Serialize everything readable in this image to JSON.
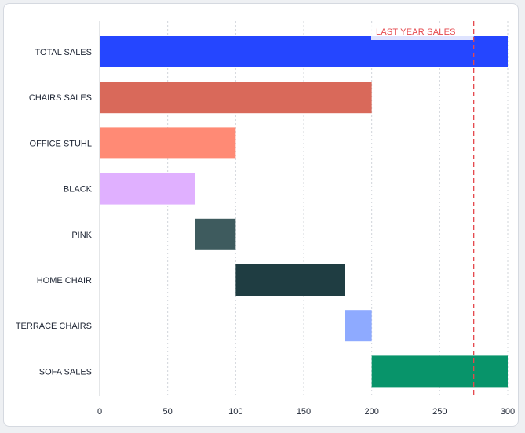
{
  "chart_data": {
    "type": "bar",
    "orientation": "horizontal",
    "subtype": "waterfall",
    "categories": [
      "TOTAL SALES",
      "CHAIRS SALES",
      "OFFICE STUHL",
      "BLACK",
      "PINK",
      "HOME CHAIR",
      "TERRACE CHAIRS",
      "SOFA SALES"
    ],
    "bars": [
      {
        "category": "TOTAL SALES",
        "start": 0,
        "end": 300,
        "color": "#2546ff"
      },
      {
        "category": "CHAIRS SALES",
        "start": 0,
        "end": 200,
        "color": "#d9695a"
      },
      {
        "category": "OFFICE STUHL",
        "start": 0,
        "end": 100,
        "color": "#ff8a75"
      },
      {
        "category": "BLACK",
        "start": 0,
        "end": 70,
        "color": "#e0b0ff"
      },
      {
        "category": "PINK",
        "start": 70,
        "end": 100,
        "color": "#3e5b5e"
      },
      {
        "category": "HOME CHAIR",
        "start": 100,
        "end": 180,
        "color": "#1f3d42"
      },
      {
        "category": "TERRACE CHAIRS",
        "start": 180,
        "end": 200,
        "color": "#8eaaff"
      },
      {
        "category": "SOFA SALES",
        "start": 200,
        "end": 300,
        "color": "#08946a"
      }
    ],
    "xticks": [
      "0",
      "50",
      "100",
      "150",
      "200",
      "250",
      "300"
    ],
    "xlim": [
      0,
      300
    ],
    "reference_line": {
      "label": "LAST YEAR SALES",
      "value": 275,
      "color": "#e5484d"
    },
    "grid": "vertical dotted",
    "title": "",
    "xlabel": "",
    "ylabel": ""
  }
}
